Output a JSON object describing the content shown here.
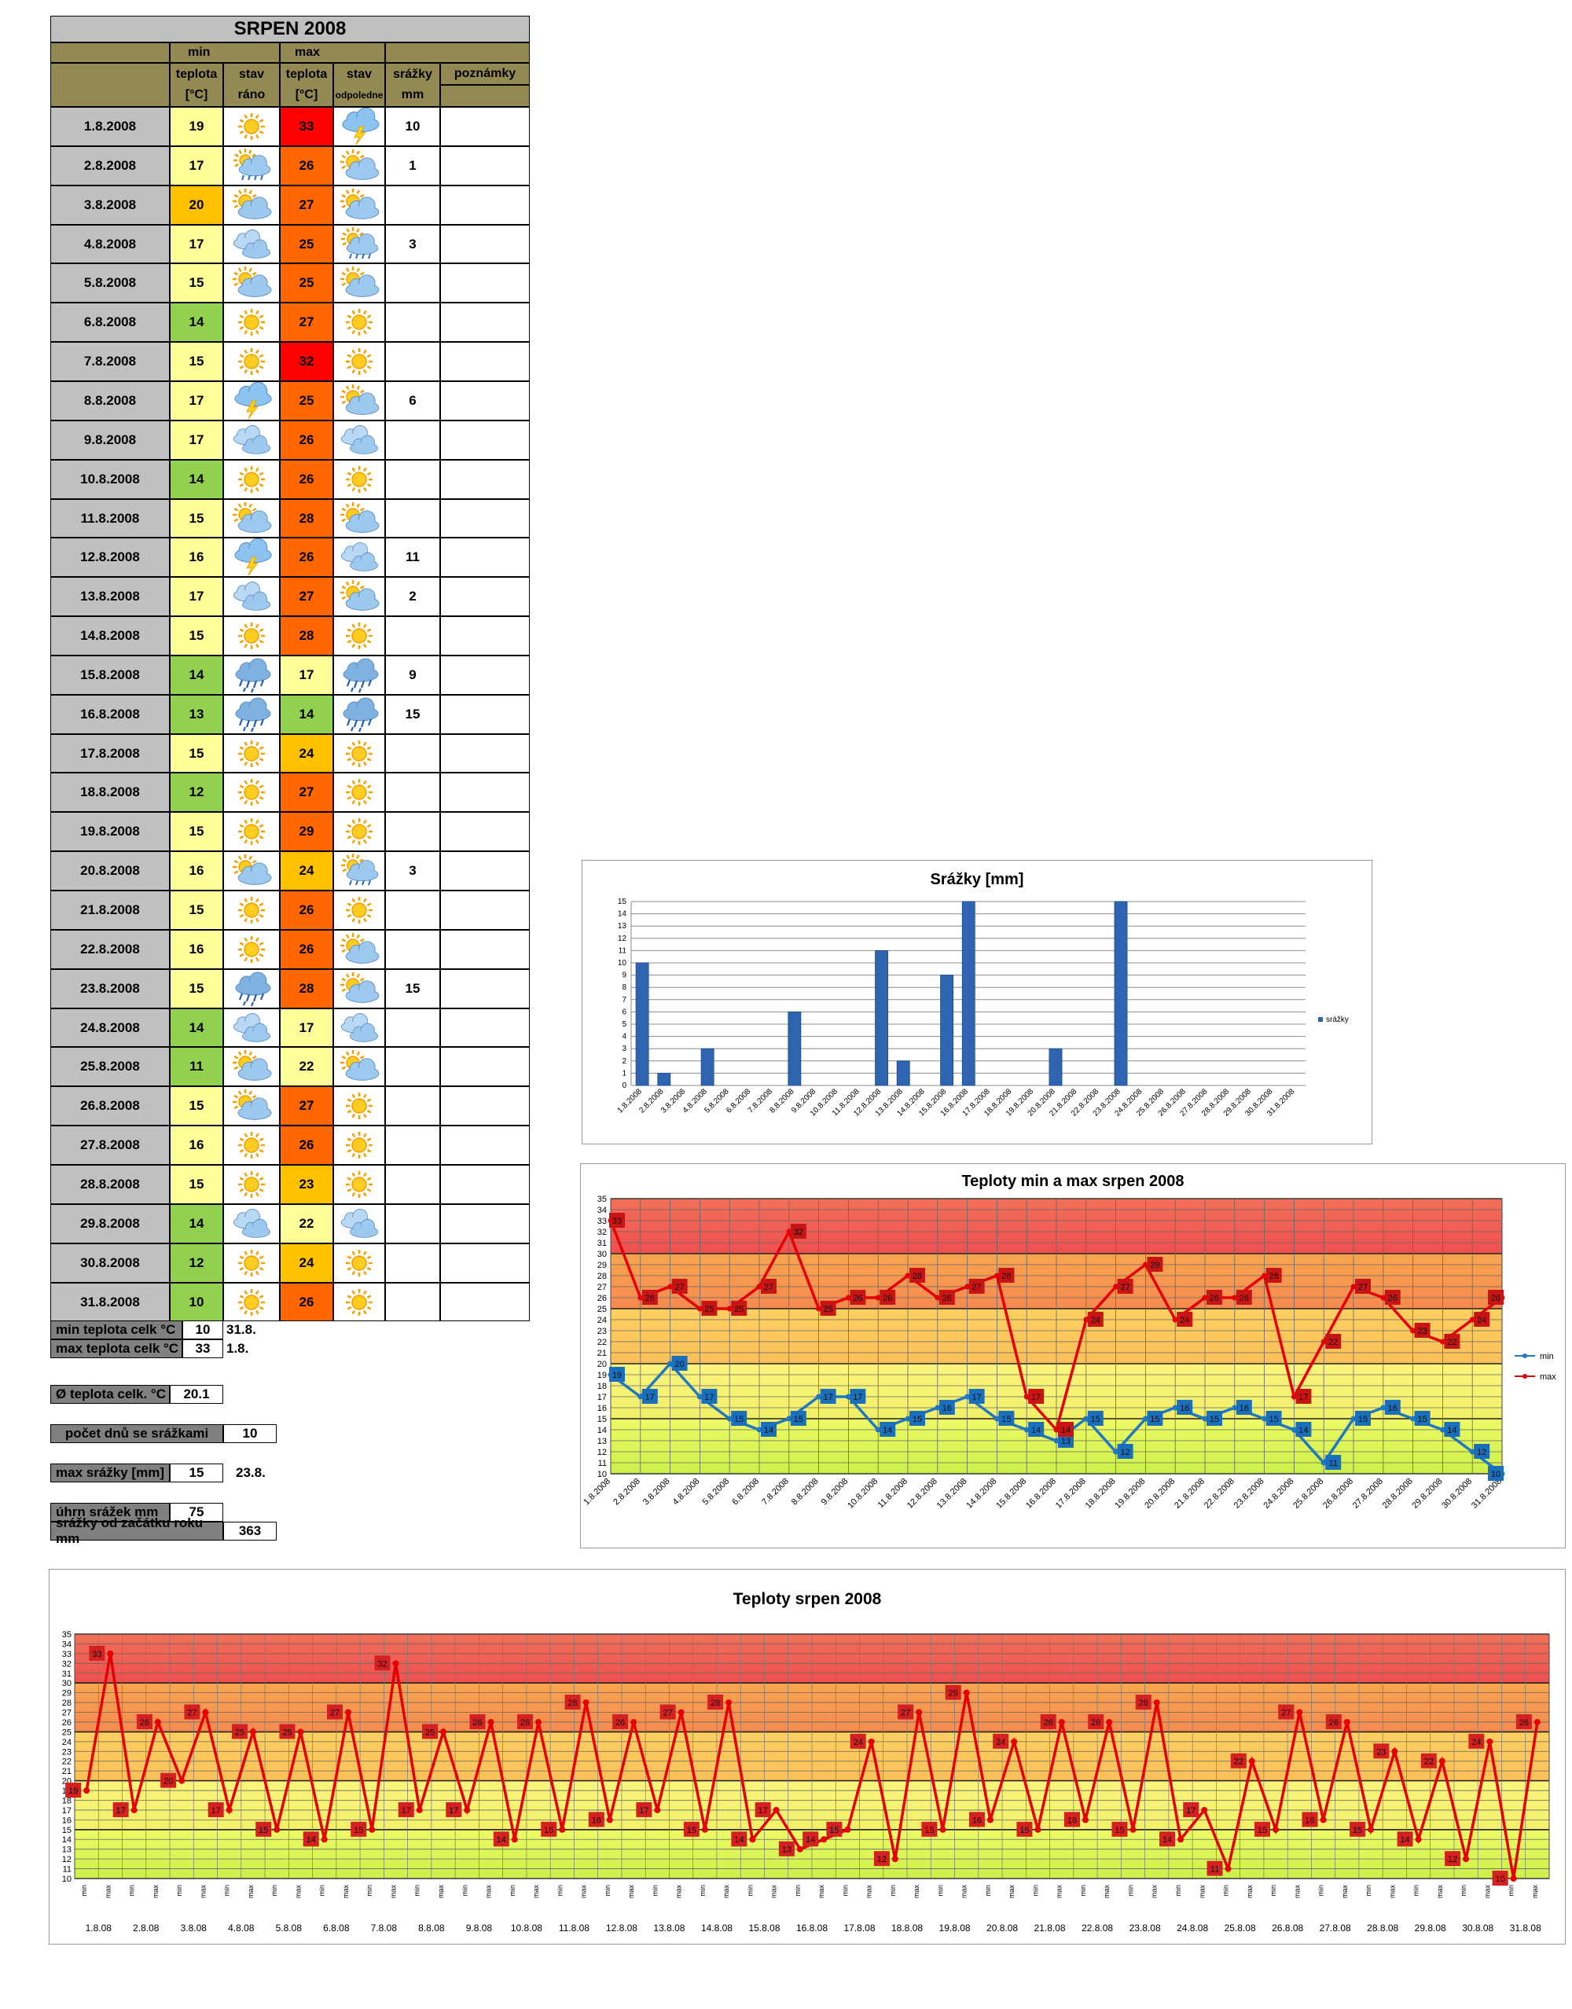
{
  "table": {
    "title": "SRPEN 2008",
    "header_row1": {
      "min": "min",
      "max": "max"
    },
    "header_row2": {
      "teplota_min": "teplota",
      "stav_rano": "stav",
      "teplota_max": "teplota",
      "stav_odpoledne": "stav",
      "srazky": "srážky",
      "poznamky": "poznámky"
    },
    "header_row3": {
      "unit_min": "[°C]",
      "stav_rano": "ráno",
      "unit_max": "[°C]",
      "stav_odpoledne": "odpoledne",
      "srazky_unit": "mm"
    },
    "rows": [
      {
        "date": "1.8.2008",
        "min": "19",
        "morning": "sunny",
        "max": "33",
        "afternoon": "storm",
        "rain": "10"
      },
      {
        "date": "2.8.2008",
        "min": "17",
        "morning": "sun-rain",
        "max": "26",
        "afternoon": "partly-cloudy",
        "rain": "1"
      },
      {
        "date": "3.8.2008",
        "min": "20",
        "morning": "partly-cloudy",
        "max": "27",
        "afternoon": "partly-cloudy",
        "rain": ""
      },
      {
        "date": "4.8.2008",
        "min": "17",
        "morning": "cloudy",
        "max": "25",
        "afternoon": "sun-rain",
        "rain": "3"
      },
      {
        "date": "5.8.2008",
        "min": "15",
        "morning": "partly-cloudy",
        "max": "25",
        "afternoon": "partly-cloudy",
        "rain": ""
      },
      {
        "date": "6.8.2008",
        "min": "14",
        "morning": "sunny",
        "max": "27",
        "afternoon": "sunny",
        "rain": ""
      },
      {
        "date": "7.8.2008",
        "min": "15",
        "morning": "sunny",
        "max": "32",
        "afternoon": "sunny",
        "rain": ""
      },
      {
        "date": "8.8.2008",
        "min": "17",
        "morning": "storm",
        "max": "25",
        "afternoon": "partly-cloudy",
        "rain": "6"
      },
      {
        "date": "9.8.2008",
        "min": "17",
        "morning": "cloudy",
        "max": "26",
        "afternoon": "cloudy",
        "rain": ""
      },
      {
        "date": "10.8.2008",
        "min": "14",
        "morning": "sunny",
        "max": "26",
        "afternoon": "sunny",
        "rain": ""
      },
      {
        "date": "11.8.2008",
        "min": "15",
        "morning": "partly-cloudy",
        "max": "28",
        "afternoon": "partly-cloudy",
        "rain": ""
      },
      {
        "date": "12.8.2008",
        "min": "16",
        "morning": "storm",
        "max": "26",
        "afternoon": "cloudy",
        "rain": "11"
      },
      {
        "date": "13.8.2008",
        "min": "17",
        "morning": "cloudy",
        "max": "27",
        "afternoon": "partly-cloudy",
        "rain": "2"
      },
      {
        "date": "14.8.2008",
        "min": "15",
        "morning": "sunny",
        "max": "28",
        "afternoon": "sunny",
        "rain": ""
      },
      {
        "date": "15.8.2008",
        "min": "14",
        "morning": "rain",
        "max": "17",
        "afternoon": "rain",
        "rain": "9"
      },
      {
        "date": "16.8.2008",
        "min": "13",
        "morning": "rain",
        "max": "14",
        "afternoon": "rain",
        "rain": "15"
      },
      {
        "date": "17.8.2008",
        "min": "15",
        "morning": "sunny",
        "max": "24",
        "afternoon": "sunny",
        "rain": ""
      },
      {
        "date": "18.8.2008",
        "min": "12",
        "morning": "sunny",
        "max": "27",
        "afternoon": "sunny",
        "rain": ""
      },
      {
        "date": "19.8.2008",
        "min": "15",
        "morning": "sunny",
        "max": "29",
        "afternoon": "sunny",
        "rain": ""
      },
      {
        "date": "20.8.2008",
        "min": "16",
        "morning": "partly-cloudy",
        "max": "24",
        "afternoon": "sun-rain",
        "rain": "3"
      },
      {
        "date": "21.8.2008",
        "min": "15",
        "morning": "sunny",
        "max": "26",
        "afternoon": "sunny",
        "rain": ""
      },
      {
        "date": "22.8.2008",
        "min": "16",
        "morning": "sunny",
        "max": "26",
        "afternoon": "partly-cloudy",
        "rain": ""
      },
      {
        "date": "23.8.2008",
        "min": "15",
        "morning": "rain",
        "max": "28",
        "afternoon": "partly-cloudy",
        "rain": "15"
      },
      {
        "date": "24.8.2008",
        "min": "14",
        "morning": "cloudy",
        "max": "17",
        "afternoon": "cloudy",
        "rain": ""
      },
      {
        "date": "25.8.2008",
        "min": "11",
        "morning": "partly-cloudy",
        "max": "22",
        "afternoon": "partly-cloudy",
        "rain": ""
      },
      {
        "date": "26.8.2008",
        "min": "15",
        "morning": "partly-cloudy",
        "max": "27",
        "afternoon": "sunny",
        "rain": ""
      },
      {
        "date": "27.8.2008",
        "min": "16",
        "morning": "sunny",
        "max": "26",
        "afternoon": "sunny",
        "rain": ""
      },
      {
        "date": "28.8.2008",
        "min": "15",
        "morning": "sunny",
        "max": "23",
        "afternoon": "sunny",
        "rain": ""
      },
      {
        "date": "29.8.2008",
        "min": "14",
        "morning": "cloudy",
        "max": "22",
        "afternoon": "cloudy",
        "rain": ""
      },
      {
        "date": "30.8.2008",
        "min": "12",
        "morning": "sunny",
        "max": "24",
        "afternoon": "sunny",
        "rain": ""
      },
      {
        "date": "31.8.2008",
        "min": "10",
        "morning": "sunny",
        "max": "26",
        "afternoon": "sunny",
        "rain": ""
      }
    ]
  },
  "stats": {
    "min_label": "min teplota celk °C",
    "min_value": "10",
    "min_date": "31.8.",
    "max_label": "max teplota celk °C",
    "max_value": "33",
    "max_date": "1.8.",
    "avg_label": "Ø teplota celk. °C",
    "avg_value": "20.1",
    "rain_days_label": "počet dnů se srážkami",
    "rain_days_value": "10",
    "max_rain_label": "max srážky [mm]",
    "max_rain_value": "15",
    "max_rain_date": "23.8.",
    "total_rain_label": "úhrn srážek  mm",
    "total_rain_value": "75",
    "year_rain_label": "srážky od začátku roku mm",
    "year_rain_value": "363"
  },
  "colors": {
    "header_bg": "#938953",
    "date_bg": "#c0c0c0",
    "temp_green": "#92d050",
    "temp_pale": "#ffff99",
    "temp_yellow": "#ffc000",
    "temp_orange": "#ff6600",
    "temp_red": "#ff0000",
    "min_line": "#1f78c1",
    "max_line": "#e60000",
    "bar": "#2f65b0"
  },
  "chart_data": [
    {
      "type": "bar",
      "title": "Srážky [mm]",
      "categories": [
        "1.8.2008",
        "2.8.2008",
        "3.8.2008",
        "4.8.2008",
        "5.8.2008",
        "6.8.2008",
        "7.8.2008",
        "8.8.2008",
        "9.8.2008",
        "10.8.2008",
        "11.8.2008",
        "12.8.2008",
        "13.8.2008",
        "14.8.2008",
        "15.8.2008",
        "16.8.2008",
        "17.8.2008",
        "18.8.2008",
        "19.8.2008",
        "20.8.2008",
        "21.8.2008",
        "22.8.2008",
        "23.8.2008",
        "24.8.2008",
        "25.8.2008",
        "26.8.2008",
        "27.8.2008",
        "28.8.2008",
        "29.8.2008",
        "30.8.2008",
        "31.8.2008"
      ],
      "series": [
        {
          "name": "srážky",
          "values": [
            10,
            1,
            0,
            3,
            0,
            0,
            0,
            6,
            0,
            0,
            0,
            11,
            2,
            0,
            9,
            15,
            0,
            0,
            0,
            3,
            0,
            0,
            15,
            0,
            0,
            0,
            0,
            0,
            0,
            0,
            0
          ]
        }
      ],
      "ylim": [
        0,
        15
      ],
      "legend": "right"
    },
    {
      "type": "line",
      "title": "Teploty min a max srpen 2008",
      "categories": [
        "1.8.2008",
        "2.8.2008",
        "3.8.2008",
        "4.8.2008",
        "5.8.2008",
        "6.8.2008",
        "7.8.2008",
        "8.8.2008",
        "9.8.2008",
        "10.8.2008",
        "11.8.2008",
        "12.8.2008",
        "13.8.2008",
        "14.8.2008",
        "15.8.2008",
        "16.8.2008",
        "17.8.2008",
        "18.8.2008",
        "19.8.2008",
        "20.8.2008",
        "21.8.2008",
        "22.8.2008",
        "23.8.2008",
        "24.8.2008",
        "25.8.2008",
        "26.8.2008",
        "27.8.2008",
        "28.8.2008",
        "29.8.2008",
        "30.8.2008",
        "31.8.2008"
      ],
      "series": [
        {
          "name": "min",
          "values": [
            19,
            17,
            20,
            17,
            15,
            14,
            15,
            17,
            17,
            14,
            15,
            16,
            17,
            15,
            14,
            13,
            15,
            12,
            15,
            16,
            15,
            16,
            15,
            14,
            11,
            15,
            16,
            15,
            14,
            12,
            10
          ]
        },
        {
          "name": "max",
          "values": [
            33,
            26,
            27,
            25,
            25,
            27,
            32,
            25,
            26,
            26,
            28,
            26,
            27,
            28,
            17,
            14,
            24,
            27,
            29,
            24,
            26,
            26,
            28,
            17,
            22,
            27,
            26,
            23,
            22,
            24,
            26
          ]
        }
      ],
      "ylim": [
        10,
        35
      ],
      "legend": "right"
    },
    {
      "type": "line",
      "title": "Teploty srpen 2008",
      "days": [
        "1.8.08",
        "2.8.08",
        "3.8.08",
        "4.8.08",
        "5.8.08",
        "6.8.08",
        "7.8.08",
        "8.8.08",
        "9.8.08",
        "10.8.08",
        "11.8.08",
        "12.8.08",
        "13.8.08",
        "14.8.08",
        "15.8.08",
        "16.8.08",
        "17.8.08",
        "18.8.08",
        "19.8.08",
        "20.8.08",
        "21.8.08",
        "22.8.08",
        "23.8.08",
        "24.8.08",
        "25.8.08",
        "26.8.08",
        "27.8.08",
        "28.8.08",
        "29.8.08",
        "30.8.08",
        "31.8.08"
      ],
      "sublabels": [
        "min",
        "max"
      ],
      "values": [
        19,
        33,
        17,
        26,
        20,
        27,
        17,
        25,
        15,
        25,
        14,
        27,
        15,
        32,
        17,
        25,
        17,
        26,
        14,
        26,
        15,
        28,
        16,
        26,
        17,
        27,
        15,
        28,
        14,
        17,
        13,
        14,
        15,
        24,
        12,
        27,
        15,
        29,
        16,
        24,
        15,
        26,
        16,
        26,
        15,
        28,
        14,
        17,
        11,
        22,
        15,
        27,
        16,
        26,
        15,
        23,
        14,
        22,
        12,
        24,
        10,
        26
      ],
      "ylim": [
        10,
        35
      ]
    }
  ]
}
